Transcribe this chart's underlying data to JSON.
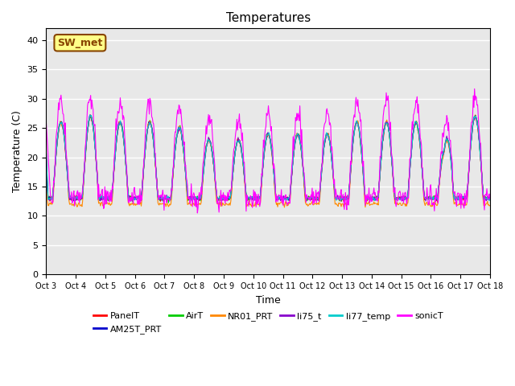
{
  "title": "Temperatures",
  "xlabel": "Time",
  "ylabel": "Temperature (C)",
  "ylim": [
    0,
    42
  ],
  "yticks": [
    0,
    5,
    10,
    15,
    20,
    25,
    30,
    35,
    40
  ],
  "x_tick_labels": [
    "Oct 3",
    "Oct 4",
    "Oct 5",
    "Oct 6",
    "Oct 7",
    "Oct 8",
    "Oct 9",
    "Oct 10",
    "Oct 11",
    "Oct 12",
    "Oct 13",
    "Oct 14",
    "Oct 15",
    "Oct 16",
    "Oct 17",
    "Oct 18"
  ],
  "series_colors": {
    "PanelT": "#ff0000",
    "AM25T_PRT": "#0000cc",
    "AirT": "#00cc00",
    "NR01_PRT": "#ff8800",
    "li75_t": "#8800cc",
    "li77_temp": "#00cccc",
    "sonicT": "#ff00ff"
  },
  "annotation_text": "SW_met",
  "annotation_bg": "#ffff88",
  "annotation_border": "#884400",
  "background_color": "#e8e8e8",
  "title_fontsize": 11,
  "axis_fontsize": 9,
  "legend_fontsize": 9,
  "n_days": 15,
  "n_per_day": 48,
  "night_min": 14.0,
  "day_amplitudes": [
    11,
    12,
    11,
    11,
    10,
    9,
    9,
    10,
    10,
    10,
    11,
    11,
    11,
    12,
    12
  ],
  "day_bases": [
    15,
    15,
    15,
    15,
    15,
    14,
    14,
    14,
    14,
    14,
    15,
    15,
    15,
    15,
    15
  ]
}
